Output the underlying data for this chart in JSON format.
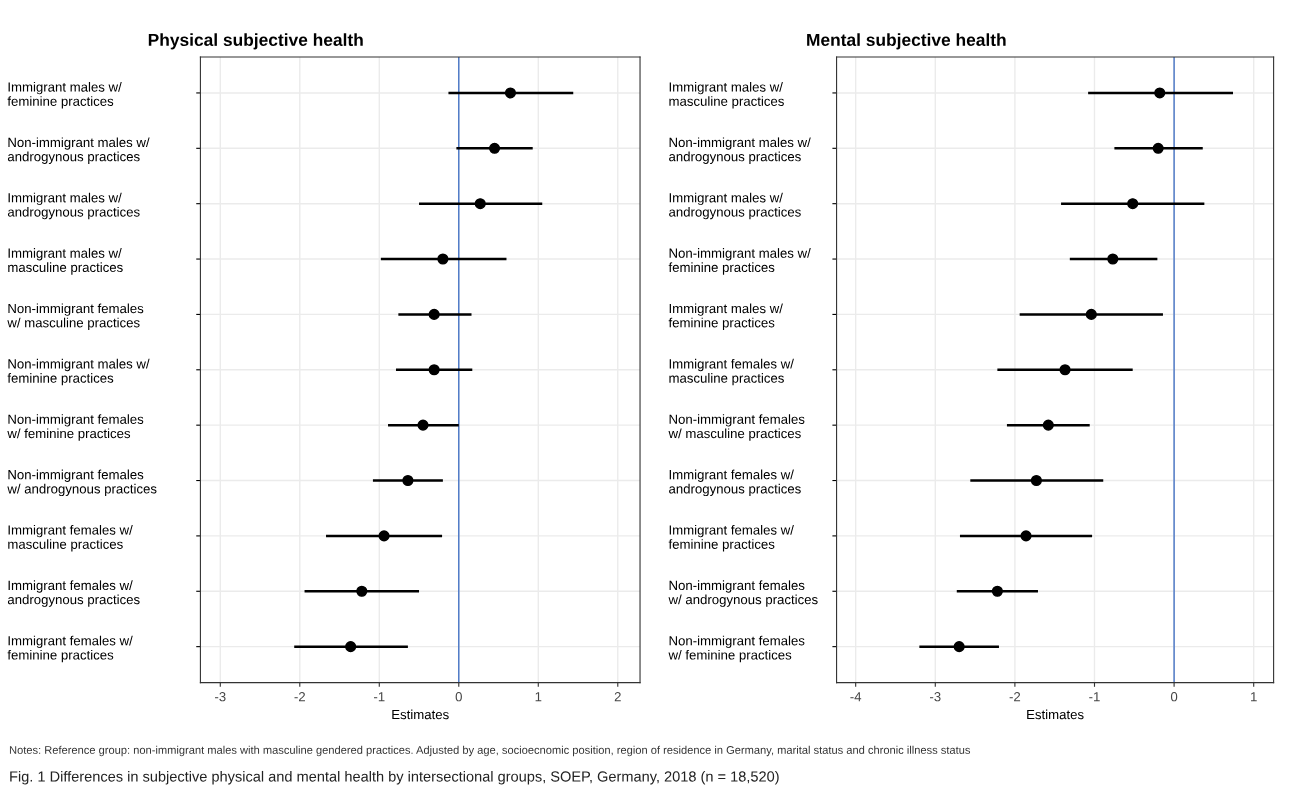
{
  "chart_data": [
    {
      "type": "scatter",
      "orientation": "horizontal",
      "title": "Physical subjective health",
      "xlabel": "Estimates",
      "categories": [
        "Immigrant males w/\nfeminine practices",
        "Non-immigrant males w/\nandrogynous practices",
        "Immigrant males w/\nandrogynous practices",
        "Immigrant males w/\nmasculine practices",
        "Non-immigrant females\nw/ masculine practices",
        "Non-immigrant males w/\nfeminine practices",
        "Non-immigrant females\nw/ feminine practices",
        "Non-immigrant females\nw/ androgynous practices",
        "Immigrant females w/\nmasculine practices",
        "Immigrant females w/\nandrogynous practices",
        "Immigrant females w/\nfeminine practices"
      ],
      "series": [
        {
          "color": "#000000",
          "values": [
            0.65,
            0.45,
            0.27,
            -0.2,
            -0.31,
            -0.31,
            -0.45,
            -0.64,
            -0.94,
            -1.22,
            -1.36
          ],
          "errors": [
            [
              -0.13,
              1.44
            ],
            [
              -0.03,
              0.93
            ],
            [
              -0.5,
              1.05
            ],
            [
              -0.98,
              0.6
            ],
            [
              -0.76,
              0.16
            ],
            [
              -0.79,
              0.17
            ],
            [
              -0.89,
              0.0
            ],
            [
              -1.08,
              -0.2
            ],
            [
              -1.67,
              -0.21
            ],
            [
              -1.94,
              -0.5
            ],
            [
              -2.07,
              -0.64
            ]
          ]
        }
      ],
      "xlim": [
        -3.25,
        2.28
      ],
      "xticks": [
        -3,
        -2,
        -1,
        0,
        1,
        2
      ],
      "grid": true,
      "marker": "circle",
      "ref_lines": [
        {
          "axis": "x",
          "value": 0,
          "color": "#4472c4"
        }
      ],
      "annotations": [
        "Notes: Reference group: non-immigrant males with masculine gendered practices. Adjusted by age, socioecnomic position, region of residence in Germany, marital status and chronic illness status",
        "Fig. 1 Differences in subjective physical and mental health by intersectional groups, SOEP, Germany, 2018 (n = 18,520)"
      ]
    },
    {
      "type": "scatter",
      "orientation": "horizontal",
      "title": "Mental subjective health",
      "xlabel": "Estimates",
      "categories": [
        "Immigrant males w/\nmasculine practices",
        "Non-immigrant males w/\nandrogynous practices",
        "Immigrant males w/\nandrogynous practices",
        "Non-immigrant males w/\nfeminine practices",
        "Immigrant males w/\nfeminine practices",
        "Immigrant females w/\nmasculine practices",
        "Non-immigrant females\nw/ masculine practices",
        "Immigrant females w/\nandrogynous practices",
        "Immigrant females w/\nfeminine practices",
        "Non-immigrant females\nw/ androgynous practices",
        "Non-immigrant females\nw/ feminine practices"
      ],
      "series": [
        {
          "color": "#000000",
          "values": [
            -0.18,
            -0.2,
            -0.52,
            -0.77,
            -1.04,
            -1.37,
            -1.58,
            -1.73,
            -1.86,
            -2.22,
            -2.7
          ],
          "errors": [
            [
              -1.08,
              0.74
            ],
            [
              -0.75,
              0.36
            ],
            [
              -1.42,
              0.38
            ],
            [
              -1.31,
              -0.21
            ],
            [
              -1.94,
              -0.14
            ],
            [
              -2.22,
              -0.52
            ],
            [
              -2.1,
              -1.06
            ],
            [
              -2.56,
              -0.89
            ],
            [
              -2.69,
              -1.03
            ],
            [
              -2.73,
              -1.71
            ],
            [
              -3.2,
              -2.2
            ]
          ]
        }
      ],
      "xlim": [
        -4.24,
        1.25
      ],
      "xticks": [
        -4,
        -3,
        -2,
        -1,
        0,
        1
      ],
      "grid": true,
      "marker": "circle",
      "ref_lines": [
        {
          "axis": "x",
          "value": 0,
          "color": "#4472c4"
        }
      ]
    }
  ]
}
